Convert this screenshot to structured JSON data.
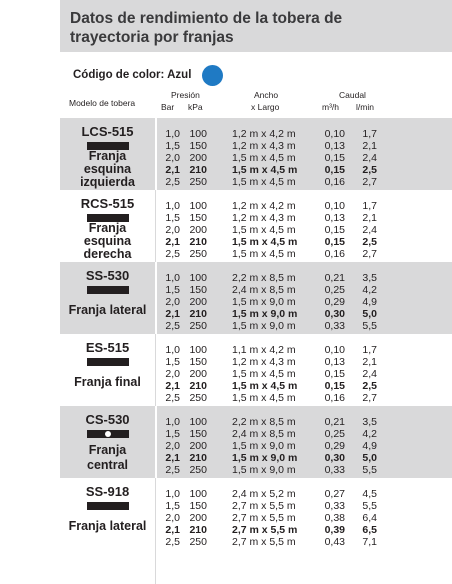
{
  "title": {
    "line1": "Datos de rendimiento de la tobera de",
    "line2": "trayectoria por franjas"
  },
  "color_code": {
    "label": "Código de color: Azul",
    "dot_color": "#1f7ac4"
  },
  "headers": {
    "model": "Modelo de tobera",
    "pressure": "Presión",
    "bar": "Bar",
    "kpa": "kPa",
    "ancho": "Ancho",
    "largo": "x Largo",
    "caudal": "Caudal",
    "m3h": "m³/h",
    "lmin": "l/min"
  },
  "colors": {
    "gray_band": "#d9d9da",
    "text": "#231f20"
  },
  "sections": [
    {
      "code": "LCS-515",
      "name_lines": [
        "Franja",
        "esquina",
        "izquierda"
      ],
      "pattern_icon": "bar-pattern-icon",
      "rows": [
        {
          "bar": "1,0",
          "kpa": "100",
          "ancho": "1,2 m x 4,2 m",
          "m3h": "0,10",
          "lmin": "1,7"
        },
        {
          "bar": "1,5",
          "kpa": "150",
          "ancho": "1,2 m x 4,3 m",
          "m3h": "0,13",
          "lmin": "2,1"
        },
        {
          "bar": "2,0",
          "kpa": "200",
          "ancho": "1,5 m x 4,5 m",
          "m3h": "0,15",
          "lmin": "2,4"
        },
        {
          "bar": "2,1",
          "kpa": "210",
          "ancho": "1,5 m x 4,5 m",
          "m3h": "0,15",
          "lmin": "2,5",
          "bold": true
        },
        {
          "bar": "2,5",
          "kpa": "250",
          "ancho": "1,5 m x 4,5 m",
          "m3h": "0,16",
          "lmin": "2,7"
        }
      ]
    },
    {
      "code": "RCS-515",
      "name_lines": [
        "Franja",
        "esquina",
        "derecha"
      ],
      "pattern_icon": "bar-pattern-icon",
      "rows": [
        {
          "bar": "1,0",
          "kpa": "100",
          "ancho": "1,2 m x 4,2 m",
          "m3h": "0,10",
          "lmin": "1,7"
        },
        {
          "bar": "1,5",
          "kpa": "150",
          "ancho": "1,2 m x 4,3 m",
          "m3h": "0,13",
          "lmin": "2,1"
        },
        {
          "bar": "2,0",
          "kpa": "200",
          "ancho": "1,5 m x 4,5 m",
          "m3h": "0,15",
          "lmin": "2,4"
        },
        {
          "bar": "2,1",
          "kpa": "210",
          "ancho": "1,5 m x 4,5 m",
          "m3h": "0,15",
          "lmin": "2,5",
          "bold": true
        },
        {
          "bar": "2,5",
          "kpa": "250",
          "ancho": "1,5 m x 4,5 m",
          "m3h": "0,16",
          "lmin": "2,7"
        }
      ]
    },
    {
      "code": "SS-530",
      "name_lines": [
        "Franja lateral"
      ],
      "pattern_icon": "bar-pattern-icon",
      "rows": [
        {
          "bar": "1,0",
          "kpa": "100",
          "ancho": "2,2 m x 8,5 m",
          "m3h": "0,21",
          "lmin": "3,5"
        },
        {
          "bar": "1,5",
          "kpa": "150",
          "ancho": "2,4 m x 8,5 m",
          "m3h": "0,25",
          "lmin": "4,2"
        },
        {
          "bar": "2,0",
          "kpa": "200",
          "ancho": "1,5 m x 9,0 m",
          "m3h": "0,29",
          "lmin": "4,9"
        },
        {
          "bar": "2,1",
          "kpa": "210",
          "ancho": "1,5 m x 9,0 m",
          "m3h": "0,30",
          "lmin": "5,0",
          "bold": true
        },
        {
          "bar": "2,5",
          "kpa": "250",
          "ancho": "1,5 m x 9,0 m",
          "m3h": "0,33",
          "lmin": "5,5"
        }
      ]
    },
    {
      "code": "ES-515",
      "name_lines": [
        "Franja final"
      ],
      "pattern_icon": "bar-pattern-icon",
      "rows": [
        {
          "bar": "1,0",
          "kpa": "100",
          "ancho": "1,1 m x 4,2 m",
          "m3h": "0,10",
          "lmin": "1,7"
        },
        {
          "bar": "1,5",
          "kpa": "150",
          "ancho": "1,2 m x 4,3 m",
          "m3h": "0,13",
          "lmin": "2,1"
        },
        {
          "bar": "2,0",
          "kpa": "200",
          "ancho": "1,5 m x 4,5 m",
          "m3h": "0,15",
          "lmin": "2,4"
        },
        {
          "bar": "2,1",
          "kpa": "210",
          "ancho": "1,5 m x 4,5 m",
          "m3h": "0,15",
          "lmin": "2,5",
          "bold": true
        },
        {
          "bar": "2,5",
          "kpa": "250",
          "ancho": "1,5 m x 4,5 m",
          "m3h": "0,16",
          "lmin": "2,7"
        }
      ]
    },
    {
      "code": "CS-530",
      "name_lines": [
        "Franja",
        "central"
      ],
      "pattern_icon": "center-dot-pattern-icon",
      "rows": [
        {
          "bar": "1,0",
          "kpa": "100",
          "ancho": "2,2 m x 8,5 m",
          "m3h": "0,21",
          "lmin": "3,5"
        },
        {
          "bar": "1,5",
          "kpa": "150",
          "ancho": "2,4 m x 8,5 m",
          "m3h": "0,25",
          "lmin": "4,2"
        },
        {
          "bar": "2,0",
          "kpa": "200",
          "ancho": "1,5 m x 9,0 m",
          "m3h": "0,29",
          "lmin": "4,9"
        },
        {
          "bar": "2,1",
          "kpa": "210",
          "ancho": "1,5 m x 9,0 m",
          "m3h": "0,30",
          "lmin": "5,0",
          "bold": true
        },
        {
          "bar": "2,5",
          "kpa": "250",
          "ancho": "1,5 m x 9,0 m",
          "m3h": "0,33",
          "lmin": "5,5"
        }
      ]
    },
    {
      "code": "SS-918",
      "name_lines": [
        "Franja lateral"
      ],
      "pattern_icon": "bar-pattern-icon",
      "rows": [
        {
          "bar": "1,0",
          "kpa": "100",
          "ancho": "2,4 m x 5,2 m",
          "m3h": "0,27",
          "lmin": "4,5"
        },
        {
          "bar": "1,5",
          "kpa": "150",
          "ancho": "2,7 m x 5,5 m",
          "m3h": "0,33",
          "lmin": "5,5"
        },
        {
          "bar": "2,0",
          "kpa": "200",
          "ancho": "2,7 m x 5,5 m",
          "m3h": "0,38",
          "lmin": "6,4"
        },
        {
          "bar": "2,1",
          "kpa": "210",
          "ancho": "2,7 m x 5,5 m",
          "m3h": "0,39",
          "lmin": "6,5",
          "bold": true
        },
        {
          "bar": "2,5",
          "kpa": "250",
          "ancho": "2,7 m x 5,5 m",
          "m3h": "0,43",
          "lmin": "7,1"
        }
      ]
    }
  ]
}
